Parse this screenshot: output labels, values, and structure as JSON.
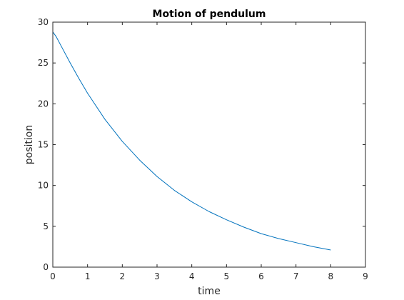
{
  "chart_data": {
    "type": "line",
    "title": "Motion of pendulum",
    "xlabel": "time",
    "ylabel": "position",
    "xlim": [
      0,
      9
    ],
    "ylim": [
      0,
      30
    ],
    "xticks": [
      0,
      1,
      2,
      3,
      4,
      5,
      6,
      7,
      8,
      9
    ],
    "yticks": [
      0,
      5,
      10,
      15,
      20,
      25,
      30
    ],
    "grid": false,
    "box": true,
    "series": [
      {
        "color": "#0072BD",
        "x": [
          0,
          0.1,
          0.25,
          0.5,
          0.75,
          1,
          1.5,
          2,
          2.5,
          3,
          3.5,
          4,
          4.5,
          5,
          5.5,
          6,
          6.5,
          7,
          7.5,
          8
        ],
        "y": [
          28.8,
          28.2,
          27.0,
          25.0,
          23.1,
          21.3,
          18.1,
          15.4,
          13.1,
          11.1,
          9.4,
          8.0,
          6.8,
          5.8,
          4.9,
          4.1,
          3.5,
          3.0,
          2.5,
          2.1
        ]
      }
    ]
  }
}
